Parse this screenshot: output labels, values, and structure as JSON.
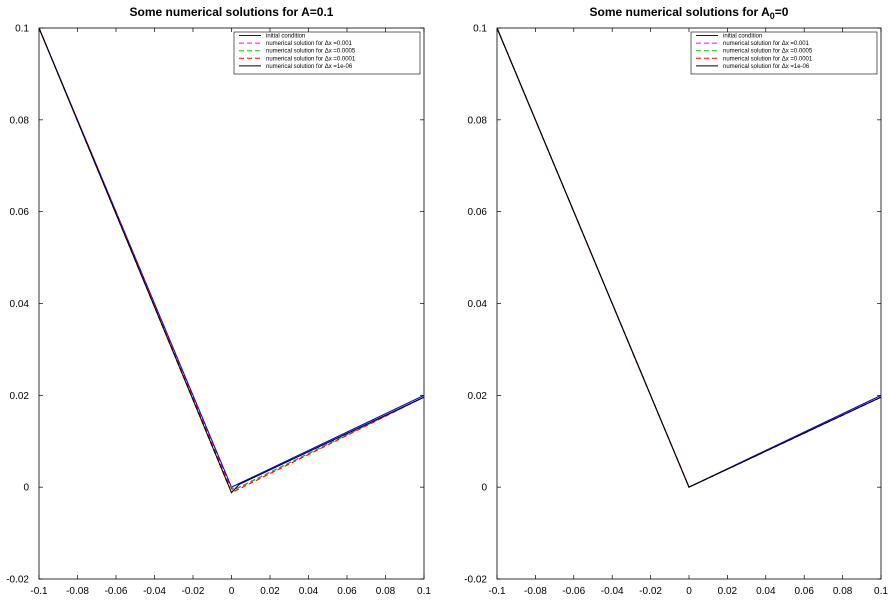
{
  "chart_data": [
    {
      "type": "line",
      "title": "Some numerical solutions for A=0.1",
      "title_sub": "",
      "title_after": "",
      "xlabel": "",
      "ylabel": "",
      "xlim": [
        -0.1,
        0.1
      ],
      "ylim": [
        -0.02,
        0.1
      ],
      "xticks": [
        -0.1,
        -0.08,
        -0.06,
        -0.04,
        -0.02,
        0,
        0.02,
        0.04,
        0.06,
        0.08,
        0.1
      ],
      "xtick_labels": [
        "-0.1",
        "-0.08",
        "-0.06",
        "-0.04",
        "-0.02",
        "0",
        "0.02",
        "0.04",
        "0.06",
        "0.08",
        "0.1"
      ],
      "yticks": [
        -0.02,
        0,
        0.02,
        0.04,
        0.06,
        0.08,
        0.1
      ],
      "ytick_labels": [
        "-0.02",
        "0",
        "0.02",
        "0.04",
        "0.06",
        "0.08",
        "0.1"
      ],
      "grid": false,
      "legend_position": "top-right",
      "series": [
        {
          "name": "initial condition",
          "color": "#0000ff",
          "dash": "solid",
          "x": [
            -0.1,
            0,
            0.1
          ],
          "y": [
            0.1,
            0,
            0.02
          ]
        },
        {
          "name": "numerical solution for  Δx =0.001",
          "color": "#ff00ff",
          "dash": "dashed",
          "x": [
            -0.1,
            -0.002,
            0.0015,
            0.1
          ],
          "y": [
            0.1,
            0.0008,
            -0.0005,
            0.0196
          ]
        },
        {
          "name": "numerical solution for  Δx =0.0005",
          "color": "#00cc00",
          "dash": "dashed",
          "x": [
            -0.1,
            -0.002,
            0.0015,
            0.1
          ],
          "y": [
            0.1,
            0.0008,
            -0.0006,
            0.0196
          ]
        },
        {
          "name": "numerical solution for  Δx =0.0001",
          "color": "#ff0000",
          "dash": "dashed",
          "x": [
            -0.1,
            -0.001,
            0.001,
            0.1
          ],
          "y": [
            0.1,
            0.0005,
            -0.001,
            0.0196
          ]
        },
        {
          "name": "numerical solution for  Δx =1e-06",
          "color": "#000000",
          "dash": "solid",
          "x": [
            -0.1,
            0,
            0.004,
            0.1
          ],
          "y": [
            0.1,
            -0.0012,
            0.0006,
            0.0196
          ]
        }
      ]
    },
    {
      "type": "line",
      "title": "Some numerical solutions for A",
      "title_sub": "0",
      "title_after": "=0",
      "xlabel": "",
      "ylabel": "",
      "xlim": [
        -0.1,
        0.1
      ],
      "ylim": [
        -0.02,
        0.1
      ],
      "xticks": [
        -0.1,
        -0.08,
        -0.06,
        -0.04,
        -0.02,
        0,
        0.02,
        0.04,
        0.06,
        0.08,
        0.1
      ],
      "xtick_labels": [
        "-0.1",
        "-0.08",
        "-0.06",
        "-0.04",
        "-0.02",
        "0",
        "0.02",
        "0.04",
        "0.06",
        "0.08",
        "0.1"
      ],
      "yticks": [
        -0.02,
        0,
        0.02,
        0.04,
        0.06,
        0.08,
        0.1
      ],
      "ytick_labels": [
        "-0.02",
        "0",
        "0.02",
        "0.04",
        "0.06",
        "0.08",
        "0.1"
      ],
      "grid": false,
      "legend_position": "top-right",
      "series": [
        {
          "name": "initial condition",
          "color": "#0000ff",
          "dash": "solid",
          "x": [
            -0.1,
            0,
            0.1
          ],
          "y": [
            0.1,
            0,
            0.02
          ]
        },
        {
          "name": "numerical solution for  Δx =0.001",
          "color": "#ff00ff",
          "dash": "dashed",
          "x": [
            -0.1,
            0,
            0.1
          ],
          "y": [
            0.1,
            0,
            0.0196
          ]
        },
        {
          "name": "numerical solution for  Δx =0.0005",
          "color": "#00cc00",
          "dash": "dashed",
          "x": [
            -0.1,
            0,
            0.1
          ],
          "y": [
            0.1,
            0,
            0.0196
          ]
        },
        {
          "name": "numerical solution for  Δx =0.0001",
          "color": "#ff0000",
          "dash": "dashed",
          "x": [
            -0.1,
            0,
            0.1
          ],
          "y": [
            0.1,
            0,
            0.0196
          ]
        },
        {
          "name": "numerical solution for  Δx =1e-06",
          "color": "#000000",
          "dash": "solid",
          "x": [
            -0.1,
            0,
            0.1
          ],
          "y": [
            0.1,
            0,
            0.0196
          ]
        }
      ]
    }
  ]
}
